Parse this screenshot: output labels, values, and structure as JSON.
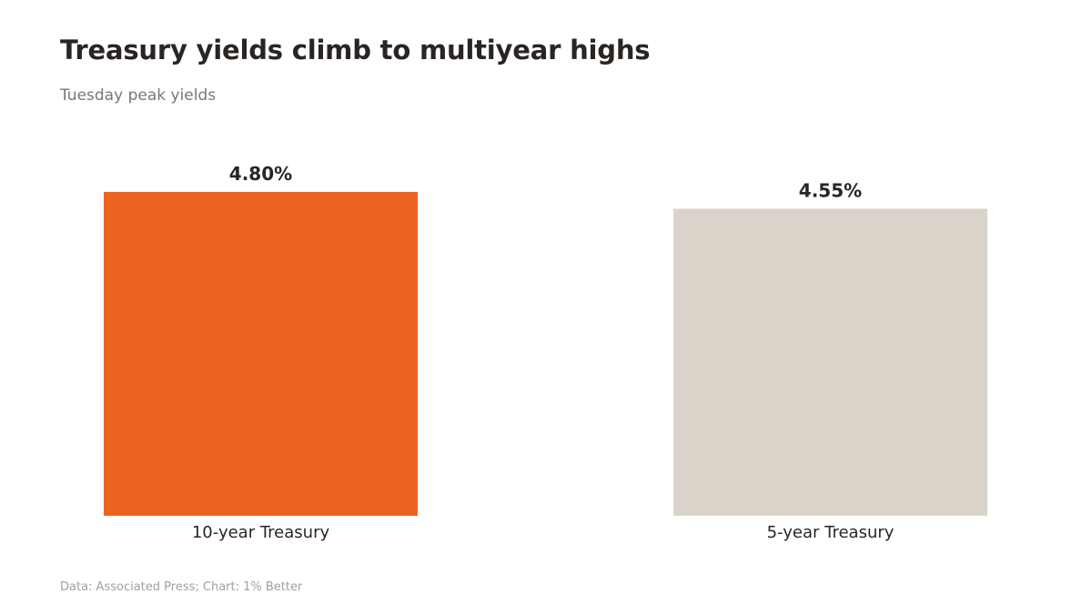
{
  "header": {
    "title": "Treasury yields climb to multiyear highs",
    "subtitle": "Tuesday peak yields"
  },
  "footer": {
    "source": "Data: Associated Press; Chart: 1% Better"
  },
  "chart_data": {
    "type": "bar",
    "title": "Treasury yields climb to multiyear highs",
    "subtitle": "Tuesday peak yields",
    "categories": [
      "10-year Treasury",
      "5-year Treasury"
    ],
    "values": [
      4.8,
      4.55
    ],
    "value_labels": [
      "4.80%",
      "4.55%"
    ],
    "colors": [
      "#eb6420",
      "#dad3c9"
    ],
    "ylim": [
      0,
      4.8
    ],
    "grid": false,
    "legend": "none"
  }
}
